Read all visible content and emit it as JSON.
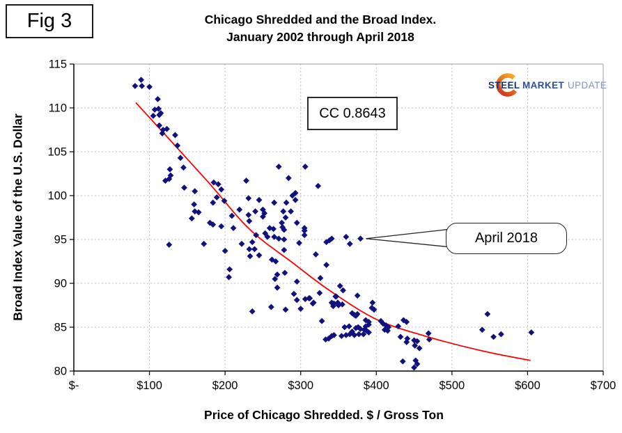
{
  "figure": {
    "label": "Fig 3"
  },
  "title": {
    "line1": "Chicago Shredded and the Broad Index.",
    "line2": "January 2002 through April 2018"
  },
  "logo": {
    "part1": "STEEL",
    "part2": "MARKET",
    "part3": "UPDATE",
    "crescent_color_top": "#f7a823",
    "crescent_color_bottom": "#d23b20"
  },
  "annotations": {
    "cc_label": "CC 0.8643",
    "callout_label": "April 2018"
  },
  "colors": {
    "marker": "#10107e",
    "trendline": "#ff0000",
    "grid": "#bdbdbd",
    "axis": "#000000",
    "frame": "#9a9a9a"
  },
  "chart_data": {
    "type": "scatter",
    "title": "Chicago Shredded and the Broad Index. January 2002 through April 2018",
    "xlabel": "Price of Chicago Shredded. $ / Gross Ton",
    "ylabel": "Broad Index Value of the U.S. Dollar",
    "xlim": [
      0,
      700
    ],
    "ylim": [
      80,
      115
    ],
    "grid": true,
    "legend": false,
    "x_ticks": [
      {
        "value": 0,
        "label": "$-"
      },
      {
        "value": 100,
        "label": "$100"
      },
      {
        "value": 200,
        "label": "$200"
      },
      {
        "value": 300,
        "label": "$300"
      },
      {
        "value": 400,
        "label": "$400"
      },
      {
        "value": 500,
        "label": "$500"
      },
      {
        "value": 600,
        "label": "$600"
      },
      {
        "value": 700,
        "label": "$700"
      }
    ],
    "y_ticks": [
      {
        "value": 115,
        "label": "115"
      },
      {
        "value": 110,
        "label": "110"
      },
      {
        "value": 105,
        "label": "105"
      },
      {
        "value": 100,
        "label": "100"
      },
      {
        "value": 95,
        "label": "95"
      },
      {
        "value": 90,
        "label": "90"
      },
      {
        "value": 85,
        "label": "85"
      },
      {
        "value": 80,
        "label": "80"
      }
    ],
    "correlation_label": "CC 0.8643",
    "highlight_point": {
      "x": 379,
      "y": 95.1,
      "label": "April 2018"
    },
    "marker": {
      "shape": "diamond",
      "color": "#10107e",
      "size": 4.4
    },
    "points": [
      [
        81,
        112.5
      ],
      [
        89,
        113.2
      ],
      [
        90,
        112.5
      ],
      [
        100,
        112.4
      ],
      [
        111,
        111.0
      ],
      [
        107,
        109.8
      ],
      [
        105,
        109.1
      ],
      [
        112,
        109.9
      ],
      [
        113,
        109.2
      ],
      [
        115,
        109.4
      ],
      [
        113,
        108.0
      ],
      [
        117,
        107.1
      ],
      [
        118,
        107.5
      ],
      [
        123,
        107.6
      ],
      [
        134,
        106.9
      ],
      [
        137,
        105.7
      ],
      [
        141,
        104.3
      ],
      [
        145,
        103.2
      ],
      [
        127,
        103.0
      ],
      [
        128,
        102.3
      ],
      [
        121,
        101.7
      ],
      [
        126,
        101.9
      ],
      [
        146,
        100.9
      ],
      [
        160,
        100.5
      ],
      [
        159,
        99.0
      ],
      [
        160,
        98.2
      ],
      [
        165,
        98.1
      ],
      [
        156,
        97.4
      ],
      [
        185,
        101.5
      ],
      [
        191,
        101.3
      ],
      [
        195,
        100.7
      ],
      [
        228,
        101.7
      ],
      [
        184,
        99.2
      ],
      [
        189,
        99.8
      ],
      [
        199,
        99.4
      ],
      [
        180,
        96.9
      ],
      [
        184,
        96.7
      ],
      [
        195,
        96.5
      ],
      [
        126,
        94.4
      ],
      [
        172,
        94.5
      ],
      [
        200,
        93.7
      ],
      [
        271,
        103.3
      ],
      [
        306,
        103.3
      ],
      [
        284,
        102.0
      ],
      [
        323,
        101.1
      ],
      [
        231,
        99.7
      ],
      [
        245,
        99.5
      ],
      [
        265,
        99.2
      ],
      [
        281,
        99.2
      ],
      [
        289,
        100.0
      ],
      [
        293,
        100.3
      ],
      [
        293,
        99.5
      ],
      [
        219,
        98.4
      ],
      [
        231,
        97.8
      ],
      [
        240,
        98.2
      ],
      [
        250,
        98.4
      ],
      [
        252,
        98.0
      ],
      [
        250,
        97.6
      ],
      [
        232,
        97.1
      ],
      [
        209,
        97.7
      ],
      [
        211,
        96.3
      ],
      [
        259,
        96.3
      ],
      [
        264,
        96.2
      ],
      [
        275,
        96.9
      ],
      [
        277,
        98.2
      ],
      [
        280,
        97.5
      ],
      [
        287,
        98.2
      ],
      [
        276,
        96.4
      ],
      [
        278,
        96.1
      ],
      [
        295,
        96.9
      ],
      [
        305,
        96.3
      ],
      [
        241,
        95.5
      ],
      [
        253,
        95.7
      ],
      [
        256,
        95.3
      ],
      [
        265,
        95.3
      ],
      [
        271,
        95.1
      ],
      [
        278,
        95.0
      ],
      [
        236,
        94.7
      ],
      [
        222,
        94.5
      ],
      [
        232,
        93.9
      ],
      [
        239,
        93.9
      ],
      [
        245,
        93.2
      ],
      [
        233,
        93.1
      ],
      [
        262,
        92.7
      ],
      [
        267,
        92.5
      ],
      [
        278,
        93.8
      ],
      [
        298,
        94.6
      ],
      [
        305,
        95.5
      ],
      [
        305,
        96.0
      ],
      [
        320,
        93.3
      ],
      [
        206,
        91.6
      ],
      [
        205,
        90.7
      ],
      [
        269,
        91.0
      ],
      [
        279,
        91.2
      ],
      [
        266,
        90.5
      ],
      [
        295,
        90.2
      ],
      [
        269,
        89.5
      ],
      [
        291,
        88.8
      ],
      [
        295,
        88.1
      ],
      [
        311,
        88.3
      ],
      [
        316,
        87.7
      ],
      [
        325,
        88.9
      ],
      [
        261,
        87.3
      ],
      [
        236,
        86.8
      ],
      [
        280,
        87.0
      ],
      [
        300,
        87.1
      ],
      [
        328,
        85.7
      ],
      [
        333,
        83.6
      ],
      [
        334,
        92.1
      ],
      [
        326,
        90.6
      ],
      [
        334,
        94.7
      ],
      [
        338,
        94.9
      ],
      [
        341,
        95.1
      ],
      [
        360,
        95.3
      ],
      [
        365,
        94.5
      ],
      [
        379,
        95.1
      ],
      [
        352,
        89.7
      ],
      [
        356,
        89.2
      ],
      [
        347,
        88.5
      ],
      [
        375,
        88.6
      ],
      [
        306,
        88.2
      ],
      [
        312,
        88.3
      ],
      [
        317,
        87.8
      ],
      [
        341,
        87.8
      ],
      [
        344,
        87.7
      ],
      [
        349,
        87.8
      ],
      [
        346,
        88.5
      ],
      [
        343,
        87.4
      ],
      [
        350,
        87.5
      ],
      [
        355,
        87.6
      ],
      [
        368,
        86.6
      ],
      [
        371,
        86.4
      ],
      [
        373,
        86.3
      ],
      [
        375,
        86.5
      ],
      [
        395,
        87.8
      ],
      [
        397,
        87.0
      ],
      [
        394,
        87.2
      ],
      [
        386,
        85.8
      ],
      [
        390,
        85.6
      ],
      [
        390,
        85.3
      ],
      [
        386,
        85.1
      ],
      [
        358,
        85.0
      ],
      [
        364,
        85.1
      ],
      [
        368,
        84.5
      ],
      [
        373,
        84.9
      ],
      [
        376,
        85.0
      ],
      [
        379,
        84.8
      ],
      [
        384,
        84.7
      ],
      [
        387,
        84.6
      ],
      [
        390,
        84.4
      ],
      [
        383,
        84.2
      ],
      [
        377,
        84.2
      ],
      [
        371,
        84.1
      ],
      [
        365,
        84.2
      ],
      [
        360,
        84.1
      ],
      [
        354,
        84.0
      ],
      [
        344,
        84.1
      ],
      [
        337,
        83.7
      ],
      [
        341,
        84.0
      ],
      [
        406,
        85.7
      ],
      [
        409,
        85.4
      ],
      [
        413,
        85.2
      ],
      [
        416,
        85.0
      ],
      [
        411,
        84.7
      ],
      [
        415,
        84.6
      ],
      [
        429,
        85.1
      ],
      [
        436,
        85.8
      ],
      [
        440,
        85.6
      ],
      [
        432,
        83.9
      ],
      [
        441,
        83.7
      ],
      [
        440,
        83.3
      ],
      [
        450,
        83.5
      ],
      [
        454,
        83.4
      ],
      [
        451,
        82.9
      ],
      [
        457,
        82.6
      ],
      [
        435,
        81.1
      ],
      [
        452,
        81.2
      ],
      [
        454,
        80.8
      ],
      [
        450,
        80.4
      ],
      [
        469,
        84.3
      ],
      [
        470,
        83.6
      ],
      [
        547,
        86.5
      ],
      [
        540,
        84.7
      ],
      [
        555,
        83.9
      ],
      [
        565,
        84.2
      ],
      [
        605,
        84.4
      ]
    ],
    "trendline": {
      "color": "#ff0000",
      "points": [
        [
          82,
          110.6
        ],
        [
          175,
          101.8
        ],
        [
          232,
          96.2
        ],
        [
          290,
          92.3
        ],
        [
          338,
          89.2
        ],
        [
          400,
          85.9
        ],
        [
          464,
          84.0
        ],
        [
          540,
          82.3
        ],
        [
          604,
          81.2
        ]
      ]
    }
  }
}
